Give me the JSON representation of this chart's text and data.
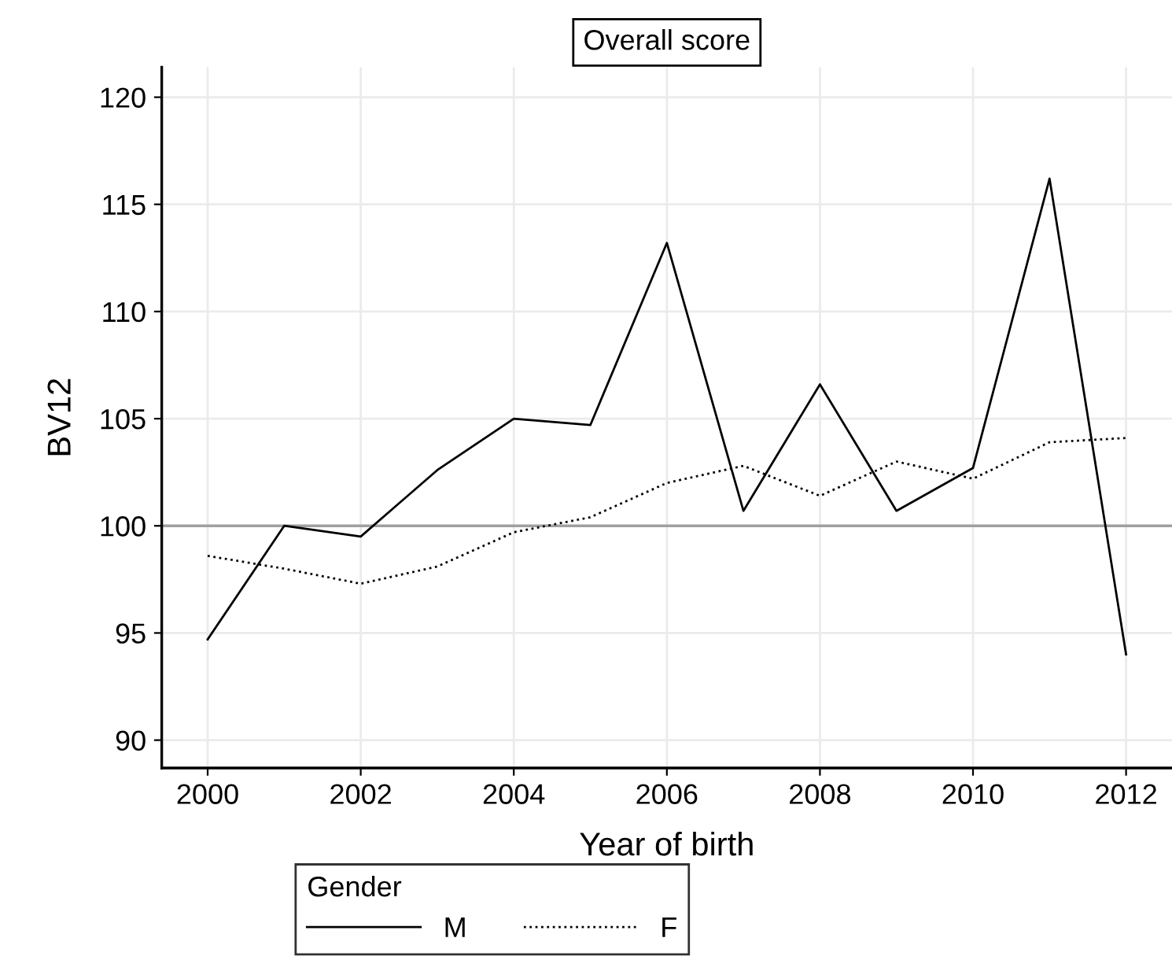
{
  "chart_data": {
    "type": "line",
    "title": "Overall score",
    "xlabel": "Year of birth",
    "ylabel": "BV12",
    "legend_title": "Gender",
    "legend": "bottom",
    "grid": true,
    "x": [
      2000,
      2001,
      2002,
      2003,
      2004,
      2005,
      2006,
      2007,
      2008,
      2009,
      2010,
      2011,
      2012
    ],
    "series": [
      {
        "name": "M",
        "color": "#000000",
        "line_style": "solid",
        "values": [
          94.7,
          100.0,
          99.5,
          102.6,
          105.0,
          104.7,
          113.2,
          100.7,
          106.6,
          100.7,
          102.7,
          116.2,
          94.0
        ]
      },
      {
        "name": "F",
        "color": "#000000",
        "line_style": "dotted",
        "values": [
          98.6,
          98.0,
          97.3,
          98.1,
          99.7,
          100.4,
          102.0,
          102.8,
          101.4,
          103.0,
          102.2,
          103.9,
          104.1
        ]
      }
    ],
    "ref_lines": [
      {
        "axis": "y",
        "value": 100,
        "color": "#a0a0a0"
      }
    ],
    "xlim": [
      1999.4,
      2012.6
    ],
    "xticks": [
      2000,
      2002,
      2004,
      2006,
      2008,
      2010,
      2012
    ],
    "ylim": [
      88.7,
      121.4
    ],
    "yticks": [
      90,
      95,
      100,
      105,
      110,
      115,
      120
    ]
  }
}
